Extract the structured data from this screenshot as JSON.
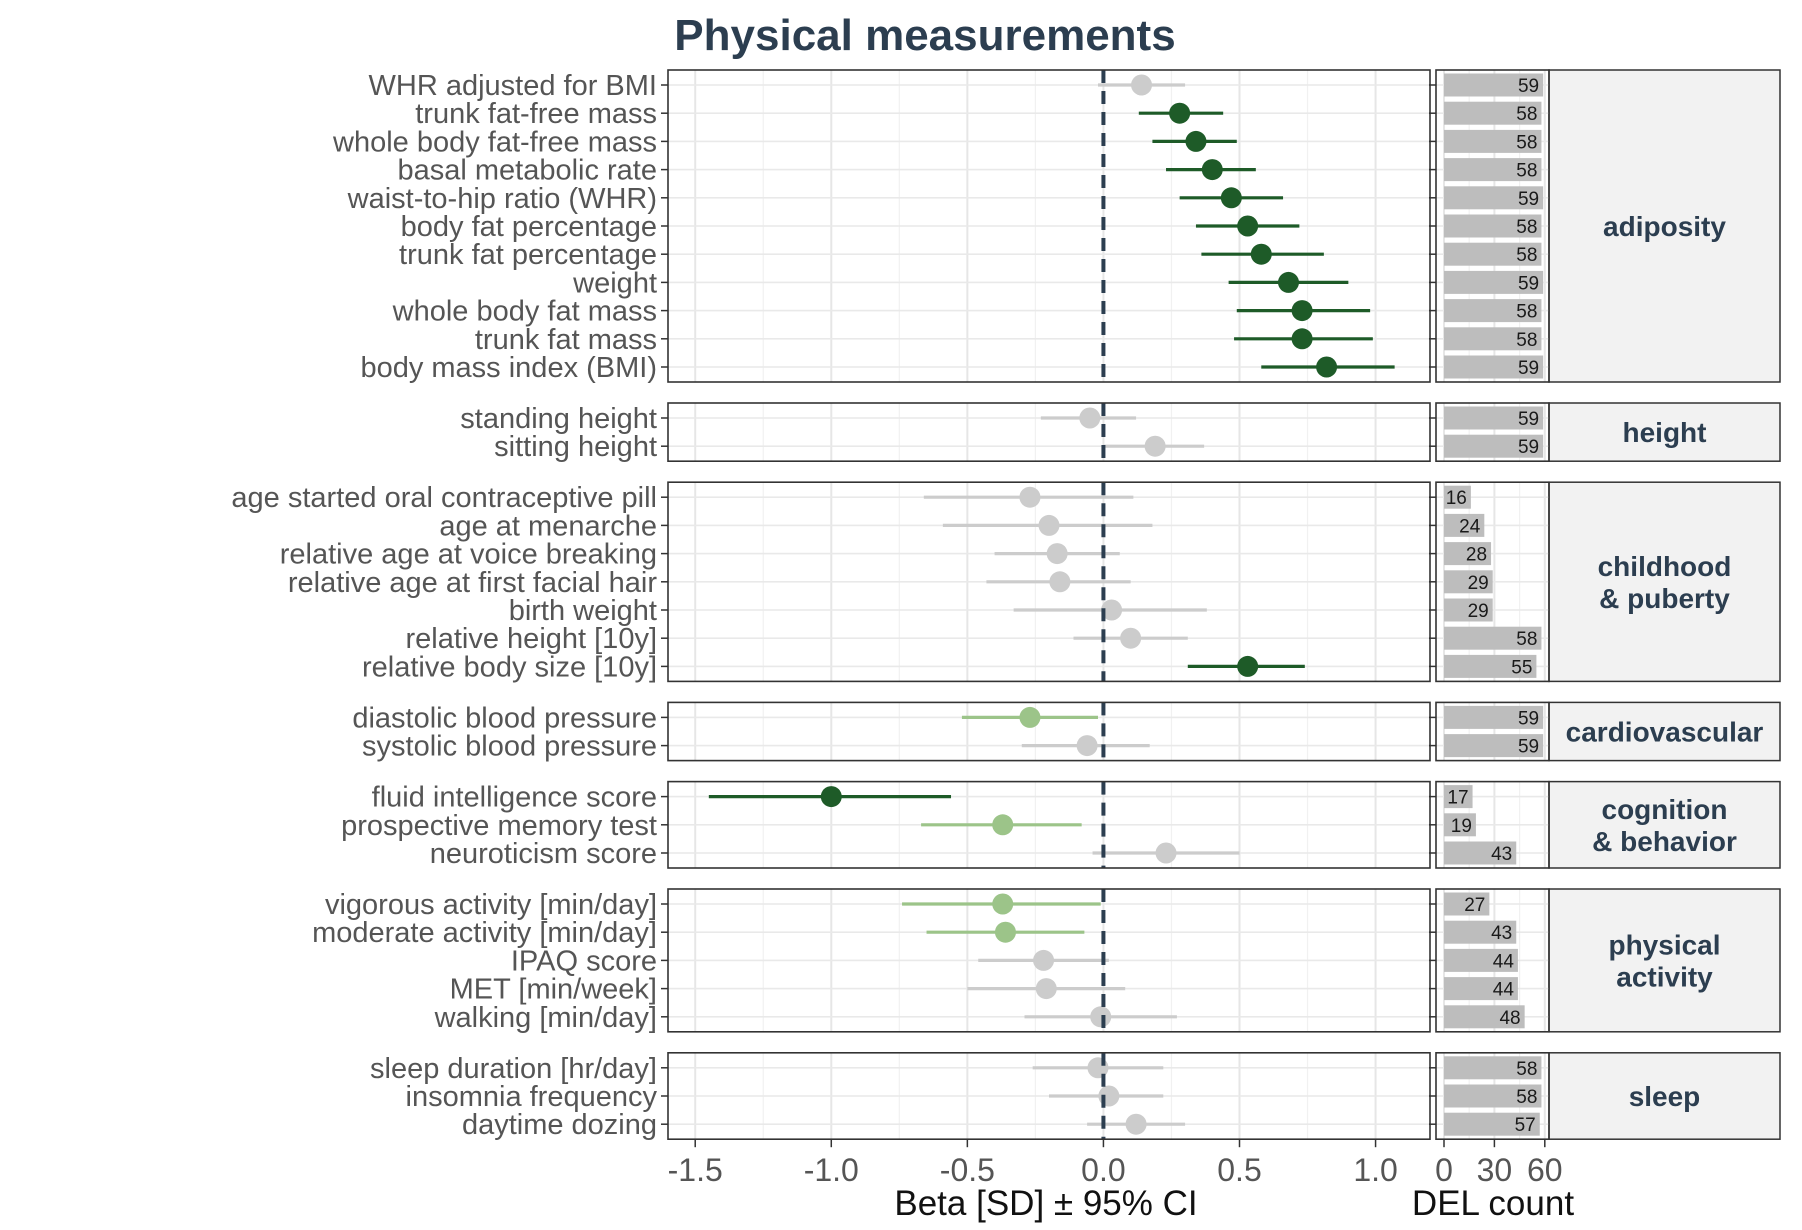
{
  "chart_data": {
    "type": "forest",
    "title": "Physical measurements",
    "xlabel": "Beta [SD] ± 95% CI",
    "xlim": [
      -1.6,
      1.2
    ],
    "x_ticks": [
      "-1.5",
      "-1.0",
      "-0.5",
      "0.0",
      "0.5",
      "1.0"
    ],
    "x_tick_values": [
      -1.5,
      -1.0,
      -0.5,
      0.0,
      0.5,
      1.0
    ],
    "reference_line": 0,
    "count_panel": {
      "xlabel": "DEL count",
      "xlim": [
        0,
        60
      ],
      "x_ticks": [
        "0",
        "30",
        "60"
      ],
      "x_tick_values": [
        0,
        30,
        60
      ]
    },
    "colors": {
      "strong": "#1e5b28",
      "moderate": "#9cc489",
      "nonsignificant": "#cccccc",
      "count_bar": "#bdbdbd",
      "reference_line": "#2c3e50",
      "group_text": "#2c3e50",
      "strip_fill": "#f2f2f2"
    },
    "groups": [
      {
        "label": "adiposity",
        "rows": [
          {
            "label": "WHR adjusted for BMI",
            "beta": 0.14,
            "lo": -0.02,
            "hi": 0.3,
            "sig": "nonsignificant",
            "count": 59
          },
          {
            "label": "trunk fat-free mass",
            "beta": 0.28,
            "lo": 0.13,
            "hi": 0.44,
            "sig": "strong",
            "count": 58
          },
          {
            "label": "whole body fat-free mass",
            "beta": 0.34,
            "lo": 0.18,
            "hi": 0.49,
            "sig": "strong",
            "count": 58
          },
          {
            "label": "basal metabolic rate",
            "beta": 0.4,
            "lo": 0.23,
            "hi": 0.56,
            "sig": "strong",
            "count": 58
          },
          {
            "label": "waist-to-hip ratio (WHR)",
            "beta": 0.47,
            "lo": 0.28,
            "hi": 0.66,
            "sig": "strong",
            "count": 59
          },
          {
            "label": "body fat percentage",
            "beta": 0.53,
            "lo": 0.34,
            "hi": 0.72,
            "sig": "strong",
            "count": 58
          },
          {
            "label": "trunk fat percentage",
            "beta": 0.58,
            "lo": 0.36,
            "hi": 0.81,
            "sig": "strong",
            "count": 58
          },
          {
            "label": "weight",
            "beta": 0.68,
            "lo": 0.46,
            "hi": 0.9,
            "sig": "strong",
            "count": 59
          },
          {
            "label": "whole body fat mass",
            "beta": 0.73,
            "lo": 0.49,
            "hi": 0.98,
            "sig": "strong",
            "count": 58
          },
          {
            "label": "trunk fat mass",
            "beta": 0.73,
            "lo": 0.48,
            "hi": 0.99,
            "sig": "strong",
            "count": 58
          },
          {
            "label": "body mass index (BMI)",
            "beta": 0.82,
            "lo": 0.58,
            "hi": 1.07,
            "sig": "strong",
            "count": 59
          }
        ]
      },
      {
        "label": "height",
        "rows": [
          {
            "label": "standing height",
            "beta": -0.05,
            "lo": -0.23,
            "hi": 0.12,
            "sig": "nonsignificant",
            "count": 59
          },
          {
            "label": "sitting height",
            "beta": 0.19,
            "lo": 0.0,
            "hi": 0.37,
            "sig": "nonsignificant",
            "count": 59
          }
        ]
      },
      {
        "label": "childhood & puberty",
        "rows": [
          {
            "label": "age started oral contraceptive pill",
            "beta": -0.27,
            "lo": -0.66,
            "hi": 0.11,
            "sig": "nonsignificant",
            "count": 16
          },
          {
            "label": "age at menarche",
            "beta": -0.2,
            "lo": -0.59,
            "hi": 0.18,
            "sig": "nonsignificant",
            "count": 24
          },
          {
            "label": "relative age at voice breaking",
            "beta": -0.17,
            "lo": -0.4,
            "hi": 0.06,
            "sig": "nonsignificant",
            "count": 28
          },
          {
            "label": "relative age at first facial hair",
            "beta": -0.16,
            "lo": -0.43,
            "hi": 0.1,
            "sig": "nonsignificant",
            "count": 29
          },
          {
            "label": "birth weight",
            "beta": 0.03,
            "lo": -0.33,
            "hi": 0.38,
            "sig": "nonsignificant",
            "count": 29
          },
          {
            "label": "relative height [10y]",
            "beta": 0.1,
            "lo": -0.11,
            "hi": 0.31,
            "sig": "nonsignificant",
            "count": 58
          },
          {
            "label": "relative body size [10y]",
            "beta": 0.53,
            "lo": 0.31,
            "hi": 0.74,
            "sig": "strong",
            "count": 55
          }
        ]
      },
      {
        "label": "cardiovascular",
        "rows": [
          {
            "label": "diastolic blood pressure",
            "beta": -0.27,
            "lo": -0.52,
            "hi": -0.02,
            "sig": "moderate",
            "count": 59
          },
          {
            "label": "systolic blood pressure",
            "beta": -0.06,
            "lo": -0.3,
            "hi": 0.17,
            "sig": "nonsignificant",
            "count": 59
          }
        ]
      },
      {
        "label": "cognition & behavior",
        "rows": [
          {
            "label": "fluid intelligence score",
            "beta": -1.0,
            "lo": -1.45,
            "hi": -0.56,
            "sig": "strong",
            "count": 17
          },
          {
            "label": "prospective memory test",
            "beta": -0.37,
            "lo": -0.67,
            "hi": -0.08,
            "sig": "moderate",
            "count": 19
          },
          {
            "label": "neuroticism score",
            "beta": 0.23,
            "lo": -0.04,
            "hi": 0.5,
            "sig": "nonsignificant",
            "count": 43
          }
        ]
      },
      {
        "label": "physical activity",
        "rows": [
          {
            "label": "vigorous activity [min/day]",
            "beta": -0.37,
            "lo": -0.74,
            "hi": -0.01,
            "sig": "moderate",
            "count": 27
          },
          {
            "label": "moderate activity [min/day]",
            "beta": -0.36,
            "lo": -0.65,
            "hi": -0.07,
            "sig": "moderate",
            "count": 43
          },
          {
            "label": "IPAQ score",
            "beta": -0.22,
            "lo": -0.46,
            "hi": 0.02,
            "sig": "nonsignificant",
            "count": 44
          },
          {
            "label": "MET [min/week]",
            "beta": -0.21,
            "lo": -0.5,
            "hi": 0.08,
            "sig": "nonsignificant",
            "count": 44
          },
          {
            "label": "walking [min/day]",
            "beta": -0.01,
            "lo": -0.29,
            "hi": 0.27,
            "sig": "nonsignificant",
            "count": 48
          }
        ]
      },
      {
        "label": "sleep",
        "rows": [
          {
            "label": "sleep duration [hr/day]",
            "beta": -0.02,
            "lo": -0.26,
            "hi": 0.22,
            "sig": "nonsignificant",
            "count": 58
          },
          {
            "label": "insomnia frequency",
            "beta": 0.02,
            "lo": -0.2,
            "hi": 0.22,
            "sig": "nonsignificant",
            "count": 58
          },
          {
            "label": "daytime dozing",
            "beta": 0.12,
            "lo": -0.06,
            "hi": 0.3,
            "sig": "nonsignificant",
            "count": 57
          }
        ]
      }
    ]
  }
}
